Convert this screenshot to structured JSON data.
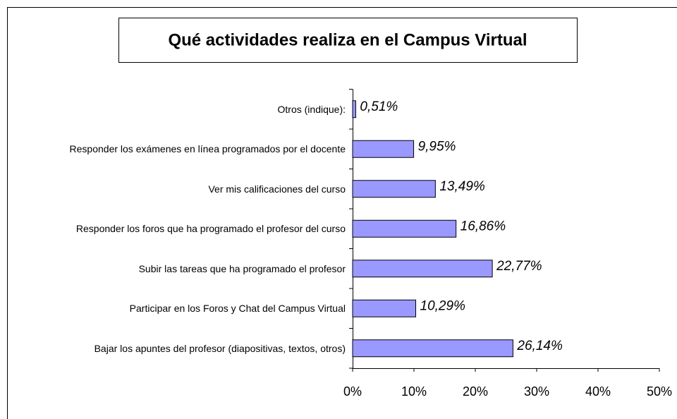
{
  "chart_data": {
    "type": "bar",
    "orientation": "horizontal",
    "title": "Qué actividades realiza en el Campus Virtual",
    "categories": [
      "Otros (indique):",
      "Responder los exámenes en línea programados por el docente",
      "Ver mis calificaciones del curso",
      "Responder los foros que ha programado el profesor del curso",
      "Subir las tareas que ha programado el profesor",
      "Participar en los Foros y Chat del Campus Virtual",
      "Bajar los apuntes del profesor (diapositivas, textos, otros)"
    ],
    "values": [
      0.51,
      9.95,
      13.49,
      16.86,
      22.77,
      10.29,
      26.14
    ],
    "value_labels": [
      "0,51%",
      "9,95%",
      "13,49%",
      "16,86%",
      "22,77%",
      "10,29%",
      "26,14%"
    ],
    "color": "#9999ff",
    "xlim": [
      0,
      50
    ],
    "xticks": [
      {
        "value": 0,
        "label": "0%"
      },
      {
        "value": 10,
        "label": "10%"
      },
      {
        "value": 20,
        "label": "20%"
      },
      {
        "value": 30,
        "label": "30%"
      },
      {
        "value": 40,
        "label": "40%"
      },
      {
        "value": 50,
        "label": "50%"
      }
    ]
  }
}
